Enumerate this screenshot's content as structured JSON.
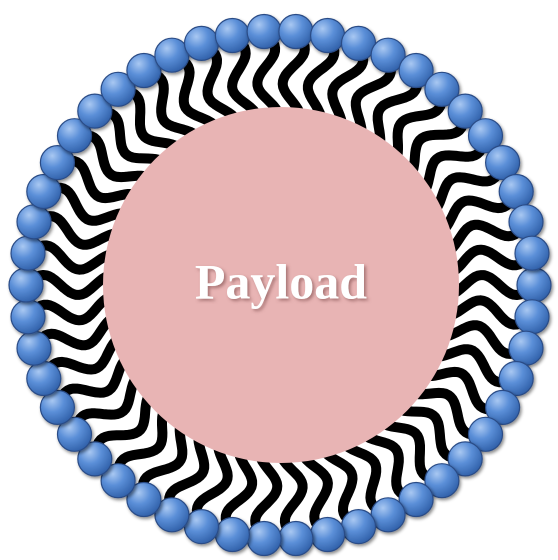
{
  "label": "Payload"
}
